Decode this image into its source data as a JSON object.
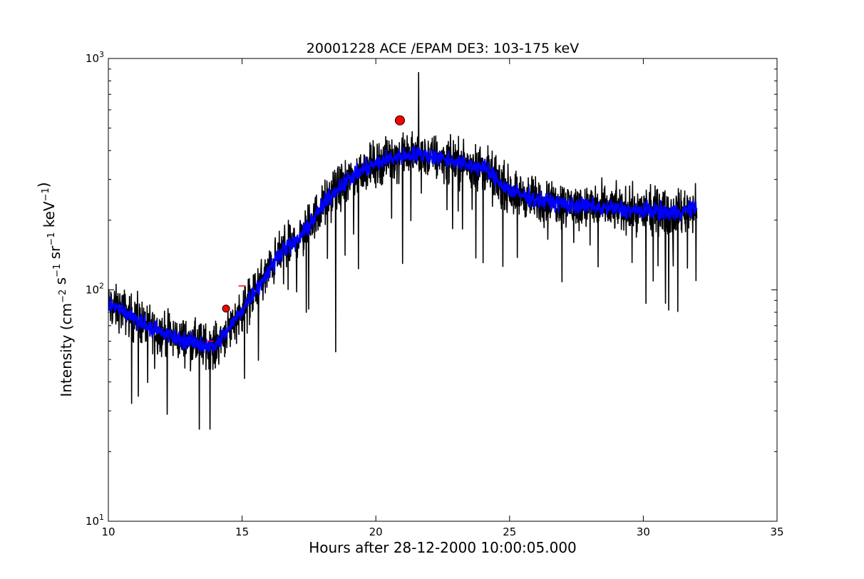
{
  "chart_data": {
    "type": "line",
    "title": "20001228 ACE /EPAM DE3: 103-175 keV",
    "xlabel": "Hours after 28-12-2000 10:00:05.000",
    "ylabel": "Intensity (cm⁻² s⁻¹ sr⁻¹ keV⁻¹)",
    "xlim": [
      10,
      35
    ],
    "ylim": [
      10,
      1000
    ],
    "yscale": "log",
    "grid": false,
    "x_ticks": [
      "10",
      "15",
      "20",
      "25",
      "30",
      "35"
    ],
    "x_tick_values": [
      10,
      15,
      20,
      25,
      30,
      35
    ],
    "y_ticks": [
      {
        "value": 10,
        "base": "10",
        "exp": "1"
      },
      {
        "value": 100,
        "base": "10",
        "exp": "2"
      },
      {
        "value": 1000,
        "base": "10",
        "exp": "3"
      }
    ],
    "series": [
      {
        "style": "raw",
        "color": "#000000",
        "x_range": [
          10,
          32
        ],
        "x": [
          10.0,
          10.5,
          11.0,
          11.5,
          12.0,
          12.5,
          13.0,
          13.5,
          14.0,
          14.5,
          15.0,
          15.5,
          16.0,
          16.5,
          17.0,
          17.5,
          18.0,
          18.5,
          19.0,
          19.5,
          20.0,
          20.5,
          21.0,
          21.5,
          22.0,
          22.5,
          23.0,
          23.5,
          24.0,
          24.5,
          25.0,
          25.5,
          26.0,
          26.5,
          27.0,
          27.5,
          28.0,
          28.5,
          29.0,
          29.5,
          30.0,
          30.5,
          31.0,
          31.5,
          32.0
        ],
        "values": [
          85,
          82,
          75,
          70,
          65,
          62,
          60,
          58,
          57,
          68,
          82,
          100,
          120,
          150,
          160,
          190,
          230,
          270,
          300,
          330,
          350,
          370,
          380,
          385,
          380,
          370,
          360,
          345,
          340,
          300,
          270,
          255,
          245,
          240,
          235,
          230,
          230,
          225,
          225,
          220,
          220,
          220,
          215,
          220,
          225
        ],
        "spikes": [
          [
            21.6,
            870
          ],
          [
            18.5,
            54
          ],
          [
            21.0,
            130
          ],
          [
            13.4,
            25
          ],
          [
            13.8,
            25
          ],
          [
            12.2,
            29
          ],
          [
            17.4,
            80
          ]
        ]
      },
      {
        "style": "smoothed",
        "color": "#0000ff",
        "x_range": [
          10,
          32
        ],
        "x": [
          10.0,
          10.5,
          11.0,
          11.5,
          12.0,
          12.5,
          13.0,
          13.5,
          14.0,
          14.5,
          15.0,
          15.5,
          16.0,
          16.5,
          17.0,
          17.5,
          18.0,
          18.5,
          19.0,
          19.5,
          20.0,
          20.5,
          21.0,
          21.5,
          22.0,
          22.5,
          23.0,
          23.5,
          24.0,
          24.5,
          25.0,
          25.5,
          26.0,
          26.5,
          27.0,
          27.5,
          28.0,
          28.5,
          29.0,
          29.5,
          30.0,
          30.5,
          31.0,
          31.5,
          32.0
        ],
        "values": [
          85,
          82,
          75,
          70,
          65,
          62,
          60,
          58,
          57,
          68,
          82,
          100,
          120,
          150,
          160,
          190,
          230,
          270,
          300,
          330,
          350,
          370,
          380,
          385,
          380,
          370,
          360,
          345,
          340,
          300,
          270,
          255,
          245,
          240,
          235,
          230,
          230,
          225,
          225,
          220,
          220,
          220,
          215,
          220,
          225
        ]
      }
    ],
    "markers": [
      {
        "x": 20.9,
        "y": 540,
        "color": "#ff0000",
        "shape": "circle",
        "size": "large"
      },
      {
        "x": 14.4,
        "y": 83,
        "color": "#ff0000",
        "shape": "circle",
        "size": "small"
      }
    ],
    "minor_marks": [
      {
        "x": 13.8,
        "y": 60,
        "color": "#ff0000"
      },
      {
        "x": 15.0,
        "y": 104,
        "color": "#ff0000"
      }
    ]
  }
}
